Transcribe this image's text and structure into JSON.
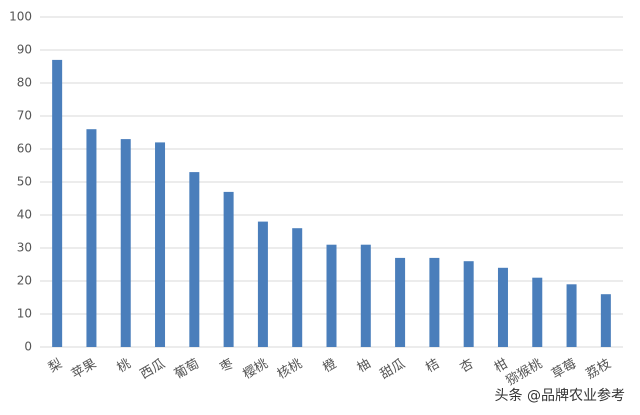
{
  "chart_data": {
    "type": "bar",
    "categories": [
      "梨",
      "苹果",
      "桃",
      "西瓜",
      "葡萄",
      "枣",
      "樱桃",
      "核桃",
      "橙",
      "柚",
      "甜瓜",
      "桔",
      "杏",
      "柑",
      "猕猴桃",
      "草莓",
      "荔枝"
    ],
    "values": [
      87,
      66,
      63,
      62,
      53,
      47,
      38,
      36,
      31,
      31,
      27,
      27,
      26,
      24,
      21,
      19,
      16
    ],
    "color": "#4a7ebb",
    "ylim": [
      0,
      100
    ],
    "yticks": [
      0,
      10,
      20,
      30,
      40,
      50,
      60,
      70,
      80,
      90,
      100
    ],
    "grid": true,
    "annotation": "头条 @品牌农业参考"
  }
}
